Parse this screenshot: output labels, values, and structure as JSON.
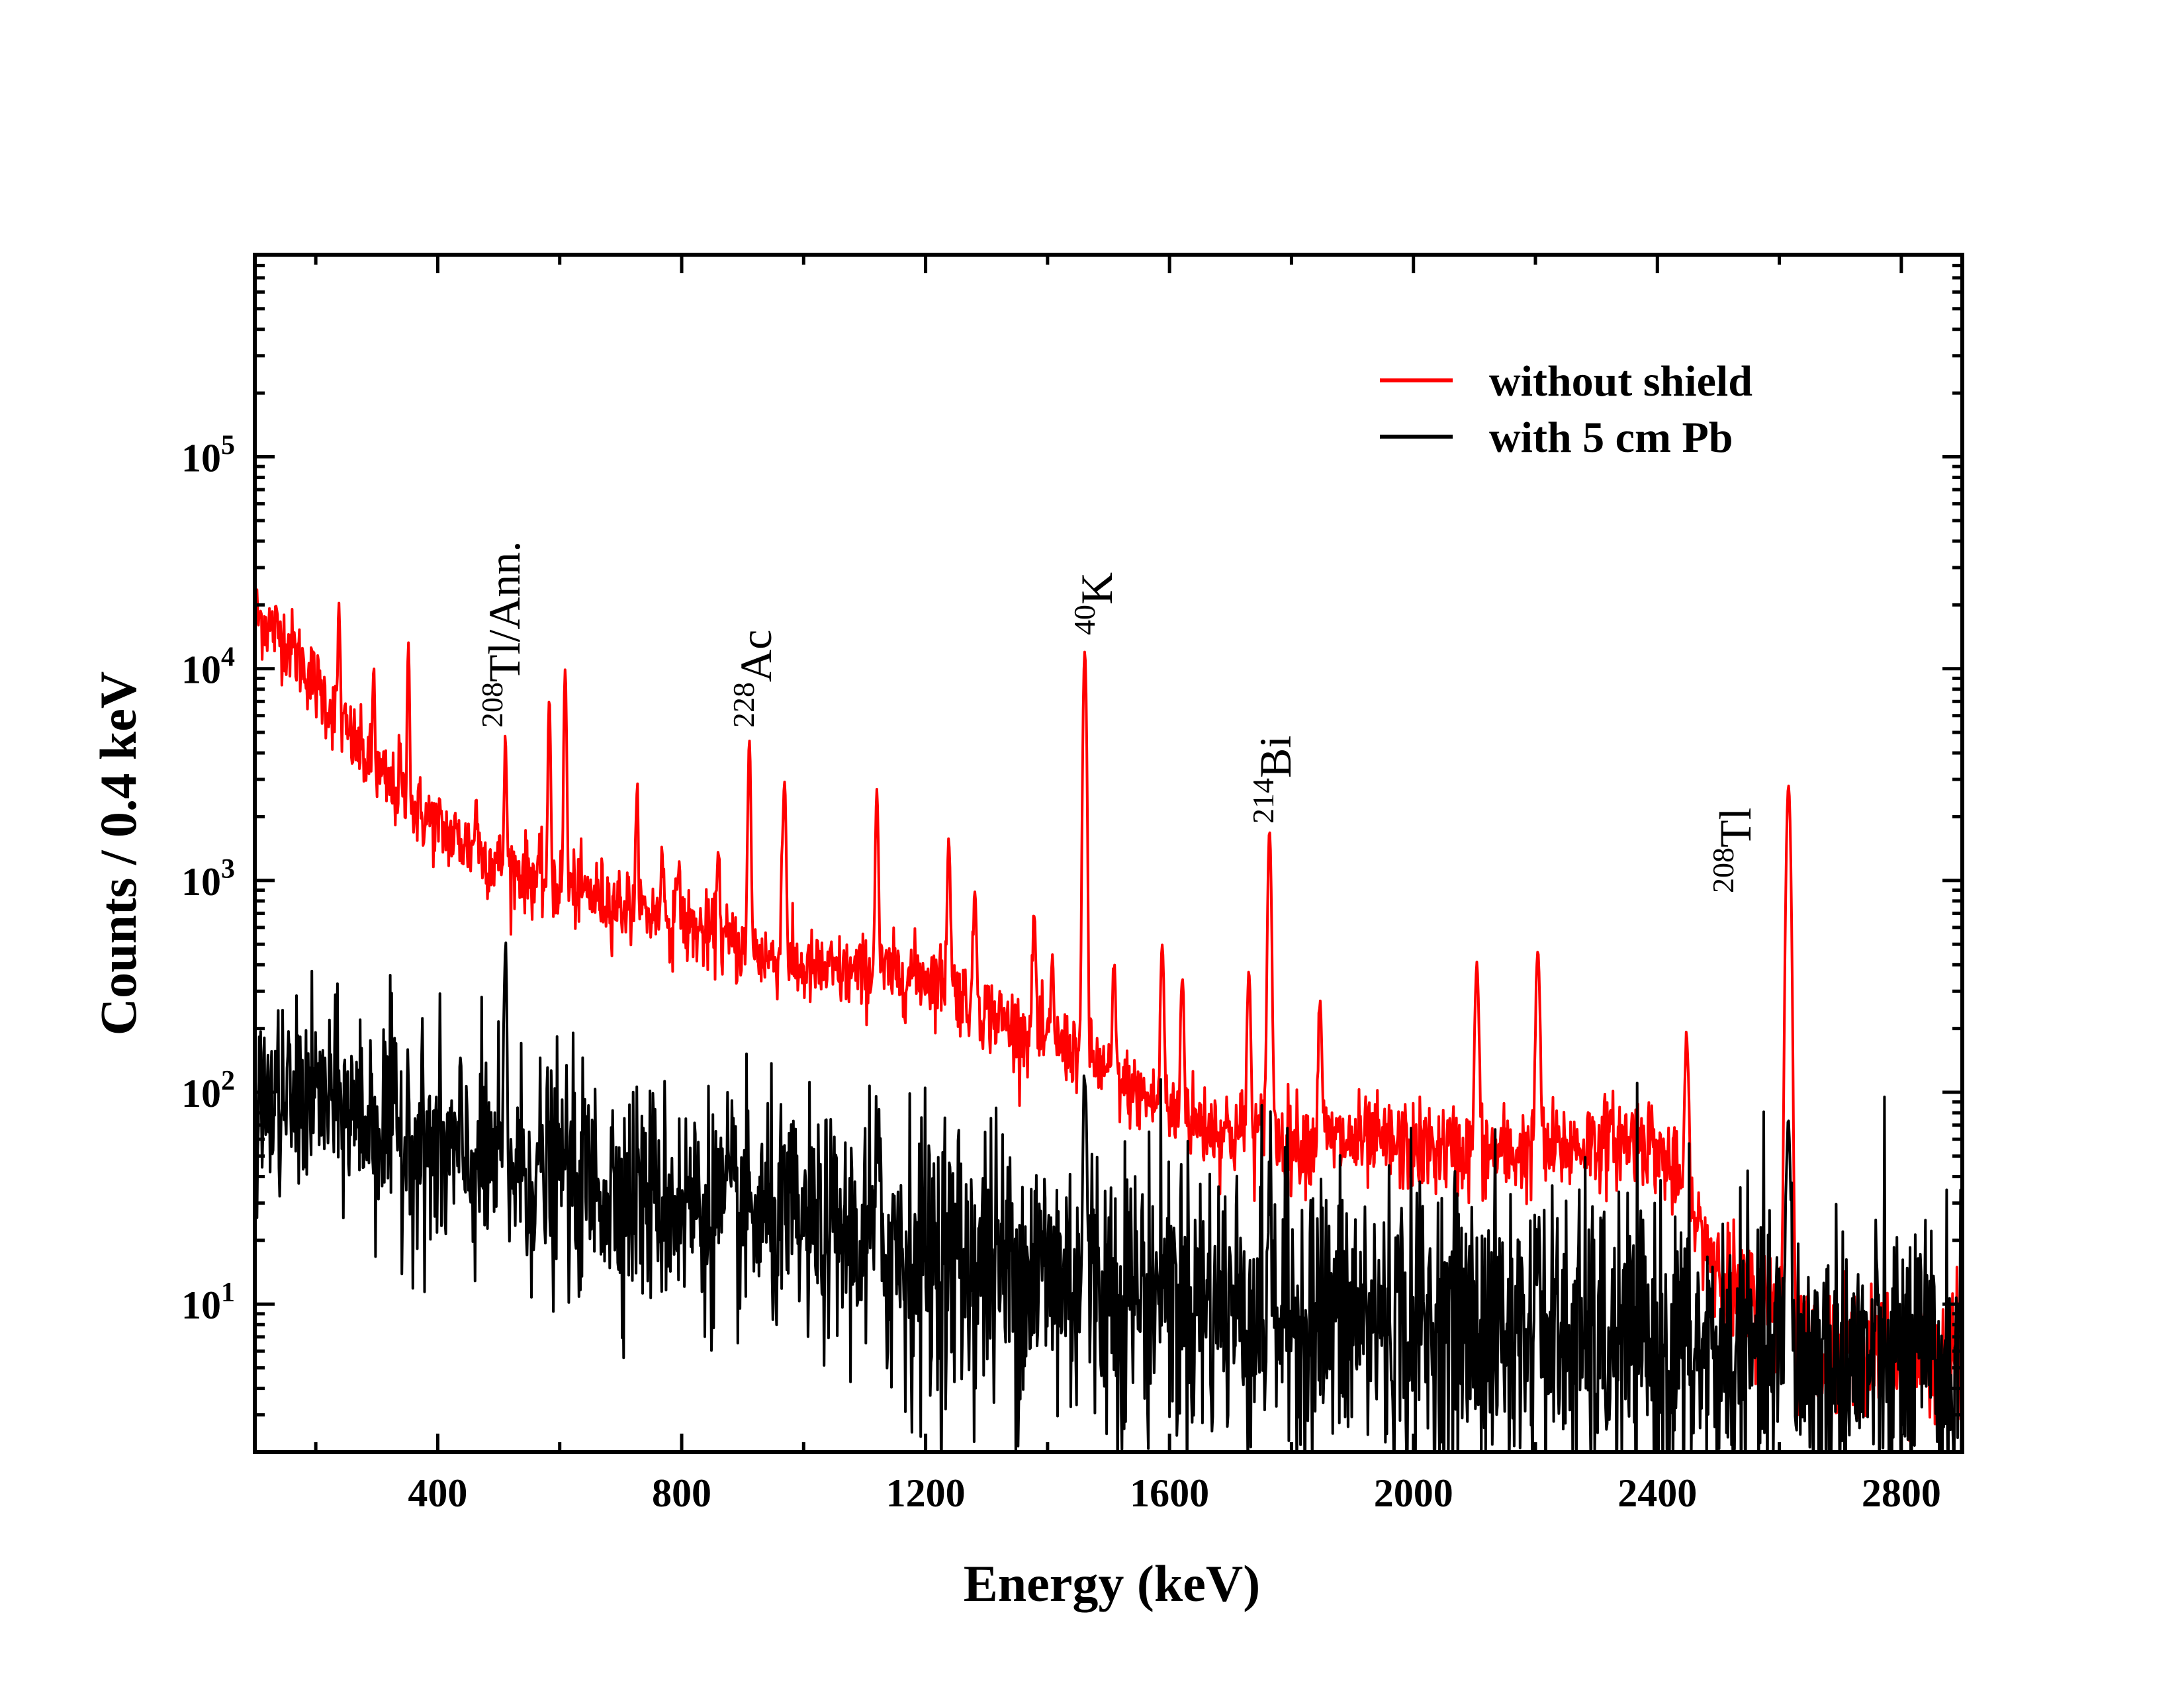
{
  "chart_data": {
    "type": "line",
    "title": "",
    "xlabel": "Energy (keV)",
    "ylabel": "Counts / 0.4 keV",
    "xlim": [
      100,
      2900
    ],
    "ylim": [
      2,
      900000
    ],
    "yscale": "log",
    "x_ticks": [
      400,
      800,
      1200,
      1600,
      2000,
      2400,
      2800
    ],
    "x_tick_labels": [
      "400",
      "800",
      "1200",
      "1600",
      "2000",
      "2400",
      "2800"
    ],
    "y_ticks": [
      10,
      100,
      1000,
      10000,
      100000
    ],
    "y_tick_base": "10",
    "y_tick_exponents": [
      "1",
      "2",
      "3",
      "4",
      "5"
    ],
    "grid": false,
    "legend_position": "top-right",
    "series": [
      {
        "name": "without shield",
        "color": "#ff0000",
        "continuum": [
          [
            100,
            18000
          ],
          [
            150,
            14000
          ],
          [
            200,
            8500
          ],
          [
            250,
            5000
          ],
          [
            300,
            3200
          ],
          [
            350,
            2300
          ],
          [
            400,
            1800
          ],
          [
            450,
            1450
          ],
          [
            500,
            1200
          ],
          [
            600,
            950
          ],
          [
            700,
            780
          ],
          [
            800,
            620
          ],
          [
            900,
            480
          ],
          [
            1000,
            380
          ],
          [
            1100,
            360
          ],
          [
            1200,
            360
          ],
          [
            1230,
            330
          ],
          [
            1300,
            240
          ],
          [
            1400,
            170
          ],
          [
            1460,
            155
          ],
          [
            1500,
            120
          ],
          [
            1600,
            80
          ],
          [
            1700,
            65
          ],
          [
            1800,
            60
          ],
          [
            1900,
            58
          ],
          [
            2000,
            55
          ],
          [
            2100,
            52
          ],
          [
            2200,
            52
          ],
          [
            2300,
            58
          ],
          [
            2380,
            62
          ],
          [
            2420,
            45
          ],
          [
            2460,
            25
          ],
          [
            2500,
            16
          ],
          [
            2540,
            10
          ],
          [
            2610,
            10
          ],
          [
            2650,
            6
          ],
          [
            2900,
            6
          ]
        ],
        "peaks": [
          [
            238,
            20000
          ],
          [
            295,
            10000
          ],
          [
            338,
            4000
          ],
          [
            352,
            13000
          ],
          [
            463,
            2500
          ],
          [
            511,
            4500
          ],
          [
            583,
            7000
          ],
          [
            609,
            10000
          ],
          [
            727,
            2500
          ],
          [
            768,
            1500
          ],
          [
            795,
            1300
          ],
          [
            860,
            1500
          ],
          [
            911,
            4500
          ],
          [
            965,
            1200
          ],
          [
            969,
            2800
          ],
          [
            1120,
            2600
          ],
          [
            1238,
            1600
          ],
          [
            1281,
            900
          ],
          [
            1378,
            700
          ],
          [
            1408,
            400
          ],
          [
            1461,
            12000
          ],
          [
            1509,
            380
          ],
          [
            1588,
            500
          ],
          [
            1621,
            350
          ],
          [
            1730,
            360
          ],
          [
            1764,
            1700
          ],
          [
            1847,
            270
          ],
          [
            2104,
            400
          ],
          [
            2204,
            470
          ],
          [
            2448,
            170
          ],
          [
            2615,
            2800
          ]
        ]
      },
      {
        "name": "with 5 cm Pb",
        "color": "#000000",
        "continuum": [
          [
            100,
            85
          ],
          [
            200,
            95
          ],
          [
            300,
            75
          ],
          [
            400,
            50
          ],
          [
            500,
            45
          ],
          [
            600,
            40
          ],
          [
            700,
            35
          ],
          [
            800,
            30
          ],
          [
            900,
            27
          ],
          [
            1000,
            23
          ],
          [
            1100,
            20
          ],
          [
            1200,
            17
          ],
          [
            1400,
            14
          ],
          [
            1600,
            11
          ],
          [
            1800,
            9
          ],
          [
            2000,
            8
          ],
          [
            2200,
            7
          ],
          [
            2400,
            6
          ],
          [
            2600,
            5.5
          ],
          [
            2900,
            5
          ]
        ],
        "peaks": [
          [
            352,
            100
          ],
          [
            511,
            480
          ],
          [
            609,
            60
          ],
          [
            1120,
            50
          ],
          [
            1461,
            120
          ],
          [
            1588,
            18
          ],
          [
            1764,
            30
          ],
          [
            2204,
            20
          ],
          [
            2615,
            70
          ]
        ]
      }
    ],
    "legend": [
      "without shield",
      "with 5 cm Pb"
    ],
    "annotations": [
      {
        "id": "tl208-ann",
        "mass": "208",
        "text": "Tl/Ann.",
        "energy": 511
      },
      {
        "id": "ac228",
        "mass": "228",
        "text": "Ac",
        "energy": 911
      },
      {
        "id": "k40",
        "mass": "40",
        "text": "K",
        "energy": 1461
      },
      {
        "id": "bi214",
        "mass": "214",
        "text": "Bi",
        "energy": 1764
      },
      {
        "id": "tl208",
        "mass": "208",
        "text": "Tl",
        "energy": 2615
      }
    ]
  }
}
